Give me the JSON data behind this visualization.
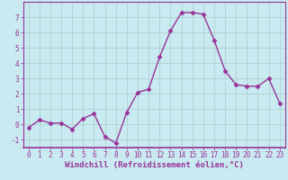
{
  "x": [
    0,
    1,
    2,
    3,
    4,
    5,
    6,
    7,
    8,
    9,
    10,
    11,
    12,
    13,
    14,
    15,
    16,
    17,
    18,
    19,
    20,
    21,
    22,
    23
  ],
  "y": [
    -0.2,
    0.3,
    0.1,
    0.1,
    -0.3,
    0.4,
    0.7,
    -0.8,
    -1.2,
    0.8,
    2.1,
    2.3,
    4.4,
    6.1,
    7.3,
    7.3,
    7.2,
    5.5,
    3.5,
    2.6,
    2.5,
    2.5,
    3.0,
    1.4
  ],
  "line_color": "#993399",
  "marker": "D",
  "marker_size": 2.5,
  "bg_color": "#c8eaf0",
  "grid_color": "#aacccc",
  "xlabel": "Windchill (Refroidissement éolien,°C)",
  "xlim": [
    -0.5,
    23.5
  ],
  "ylim": [
    -1.5,
    8.0
  ],
  "yticks": [
    -1,
    0,
    1,
    2,
    3,
    4,
    5,
    6,
    7
  ],
  "xticks": [
    0,
    1,
    2,
    3,
    4,
    5,
    6,
    7,
    8,
    9,
    10,
    11,
    12,
    13,
    14,
    15,
    16,
    17,
    18,
    19,
    20,
    21,
    22,
    23
  ],
  "xlabel_fontsize": 6.5,
  "tick_fontsize": 5.5,
  "line_width": 1.0,
  "spine_color": "#993399",
  "axis_bg": "#c8eaf0"
}
